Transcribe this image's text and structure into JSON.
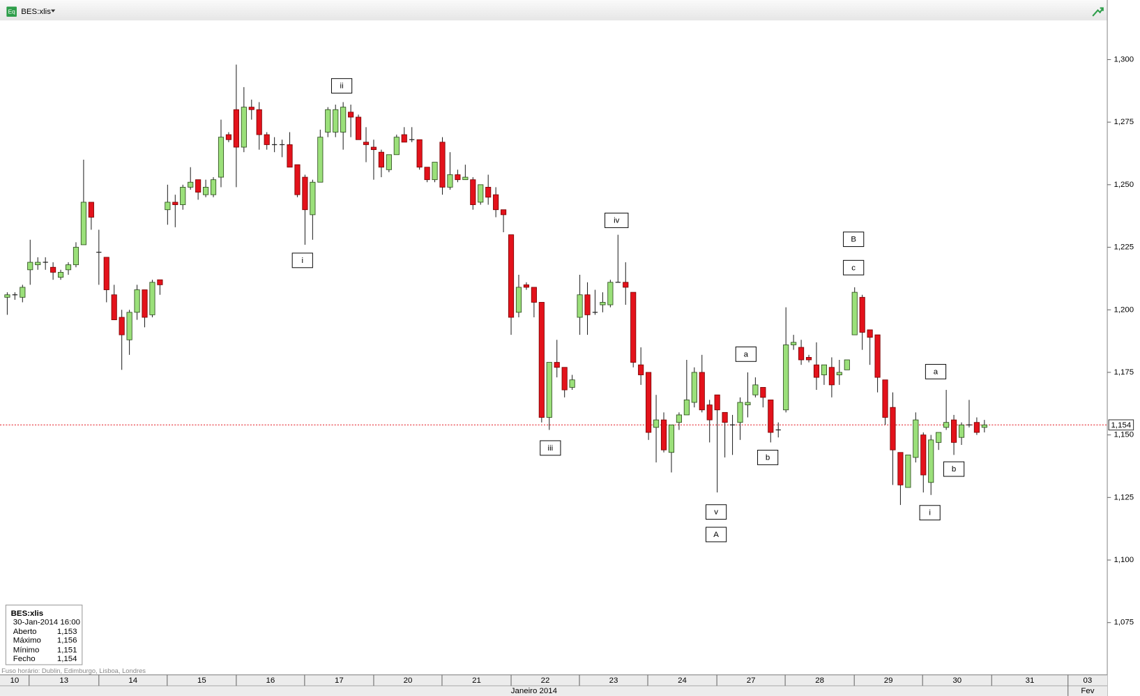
{
  "app_icon": "Eq",
  "instrument": "BES:xlis",
  "footer": "Fuso horário: Dublin, Edimburgo, Lisboa, Londres",
  "info_box": {
    "title": "BES:xlis",
    "datetime": "30-Jan-2014 16:00",
    "rows": [
      [
        "Aberto",
        "1,153"
      ],
      [
        "Máximo",
        "1,156"
      ],
      [
        "Mínimo",
        "1,151"
      ],
      [
        "Fecho",
        "1,154"
      ]
    ]
  },
  "chart_data": {
    "type": "candlestick",
    "up_color": "#9be07a",
    "down_color": "#e3121b",
    "open": [
      1.205,
      1.206,
      1.205,
      1.216,
      1.218,
      1.219,
      1.217,
      1.213,
      1.216,
      1.218,
      1.226,
      1.243,
      1.223,
      1.221,
      1.206,
      1.197,
      1.188,
      1.199,
      1.208,
      1.198,
      1.212,
      1.24,
      1.243,
      1.242,
      1.249,
      1.252,
      1.246,
      1.246,
      1.253,
      1.27,
      1.28,
      1.265,
      1.281,
      1.28,
      1.27,
      1.266,
      1.266,
      1.266,
      1.258,
      1.253,
      1.238,
      1.251,
      1.271,
      1.271,
      1.271,
      1.279,
      1.277,
      1.267,
      1.265,
      1.263,
      1.256,
      1.262,
      1.27,
      1.268,
      1.268,
      1.257,
      1.252,
      1.267,
      1.249,
      1.254,
      1.252,
      1.252,
      1.243,
      1.249,
      1.246,
      1.24,
      1.23,
      1.199,
      1.21,
      1.209,
      1.203,
      1.157,
      1.179,
      1.177,
      1.169,
      1.197,
      1.206,
      1.199,
      1.202,
      1.202,
      1.211,
      1.211,
      1.207,
      1.178,
      1.175,
      1.153,
      1.156,
      1.143,
      1.155,
      1.158,
      1.163,
      1.175,
      1.162,
      1.166,
      1.159,
      1.154,
      1.155,
      1.162,
      1.166,
      1.169,
      1.164,
      1.152,
      1.16,
      1.186,
      1.185,
      1.181,
      1.178,
      1.174,
      1.177,
      1.174,
      1.176,
      1.19,
      1.205,
      1.192,
      1.19,
      1.172,
      1.161,
      1.143,
      1.129,
      1.141,
      1.15,
      1.131,
      1.147,
      1.153,
      1.156,
      1.149,
      1.154,
      1.155,
      1.153
    ],
    "high": [
      1.207,
      1.207,
      1.21,
      1.228,
      1.221,
      1.221,
      1.219,
      1.216,
      1.219,
      1.227,
      1.26,
      1.243,
      1.232,
      1.221,
      1.21,
      1.2,
      1.2,
      1.21,
      1.208,
      1.212,
      1.212,
      1.25,
      1.246,
      1.25,
      1.257,
      1.252,
      1.252,
      1.253,
      1.276,
      1.271,
      1.298,
      1.289,
      1.284,
      1.283,
      1.271,
      1.269,
      1.268,
      1.271,
      1.258,
      1.254,
      1.252,
      1.272,
      1.281,
      1.282,
      1.283,
      1.282,
      1.278,
      1.273,
      1.268,
      1.264,
      1.262,
      1.27,
      1.273,
      1.273,
      1.268,
      1.257,
      1.259,
      1.269,
      1.263,
      1.256,
      1.258,
      1.253,
      1.25,
      1.254,
      1.249,
      1.24,
      1.23,
      1.214,
      1.211,
      1.209,
      1.203,
      1.179,
      1.188,
      1.177,
      1.174,
      1.214,
      1.211,
      1.208,
      1.207,
      1.212,
      1.23,
      1.219,
      1.207,
      1.185,
      1.175,
      1.166,
      1.159,
      1.154,
      1.159,
      1.18,
      1.177,
      1.182,
      1.164,
      1.166,
      1.159,
      1.158,
      1.165,
      1.175,
      1.173,
      1.169,
      1.164,
      1.155,
      1.201,
      1.19,
      1.188,
      1.182,
      1.187,
      1.178,
      1.181,
      1.18,
      1.18,
      1.209,
      1.206,
      1.192,
      1.19,
      1.172,
      1.167,
      1.143,
      1.142,
      1.159,
      1.151,
      1.15,
      1.151,
      1.168,
      1.158,
      1.155,
      1.164,
      1.157,
      1.156
    ],
    "low": [
      1.198,
      1.204,
      1.203,
      1.21,
      1.216,
      1.216,
      1.212,
      1.212,
      1.214,
      1.217,
      1.226,
      1.232,
      1.21,
      1.203,
      1.196,
      1.176,
      1.182,
      1.196,
      1.193,
      1.197,
      1.206,
      1.234,
      1.233,
      1.24,
      1.248,
      1.244,
      1.245,
      1.245,
      1.249,
      1.267,
      1.249,
      1.263,
      1.276,
      1.264,
      1.264,
      1.263,
      1.261,
      1.257,
      1.245,
      1.226,
      1.228,
      1.251,
      1.269,
      1.269,
      1.264,
      1.269,
      1.268,
      1.259,
      1.252,
      1.253,
      1.255,
      1.262,
      1.267,
      1.267,
      1.256,
      1.251,
      1.251,
      1.246,
      1.248,
      1.251,
      1.252,
      1.24,
      1.242,
      1.242,
      1.237,
      1.231,
      1.19,
      1.197,
      1.208,
      1.197,
      1.155,
      1.152,
      1.173,
      1.165,
      1.168,
      1.19,
      1.19,
      1.198,
      1.199,
      1.201,
      1.211,
      1.202,
      1.177,
      1.17,
      1.148,
      1.139,
      1.143,
      1.135,
      1.152,
      1.158,
      1.161,
      1.159,
      1.147,
      1.127,
      1.141,
      1.142,
      1.148,
      1.157,
      1.165,
      1.161,
      1.147,
      1.149,
      1.159,
      1.184,
      1.178,
      1.179,
      1.168,
      1.17,
      1.165,
      1.17,
      1.176,
      1.19,
      1.184,
      1.178,
      1.167,
      1.154,
      1.13,
      1.122,
      1.129,
      1.139,
      1.127,
      1.126,
      1.144,
      1.152,
      1.142,
      1.146,
      1.153,
      1.15,
      1.151
    ],
    "close": [
      1.206,
      1.206,
      1.209,
      1.219,
      1.219,
      1.219,
      1.215,
      1.215,
      1.218,
      1.225,
      1.243,
      1.237,
      1.223,
      1.208,
      1.196,
      1.19,
      1.199,
      1.208,
      1.197,
      1.211,
      1.21,
      1.243,
      1.242,
      1.249,
      1.251,
      1.247,
      1.249,
      1.252,
      1.269,
      1.268,
      1.265,
      1.281,
      1.28,
      1.27,
      1.266,
      1.266,
      1.266,
      1.257,
      1.246,
      1.24,
      1.251,
      1.269,
      1.28,
      1.28,
      1.281,
      1.277,
      1.268,
      1.266,
      1.264,
      1.257,
      1.262,
      1.269,
      1.267,
      1.268,
      1.257,
      1.252,
      1.259,
      1.249,
      1.254,
      1.252,
      1.253,
      1.242,
      1.25,
      1.245,
      1.24,
      1.238,
      1.197,
      1.209,
      1.209,
      1.203,
      1.157,
      1.179,
      1.177,
      1.168,
      1.172,
      1.206,
      1.198,
      1.199,
      1.203,
      1.211,
      1.211,
      1.209,
      1.179,
      1.174,
      1.151,
      1.156,
      1.144,
      1.154,
      1.158,
      1.164,
      1.175,
      1.16,
      1.156,
      1.16,
      1.155,
      1.154,
      1.163,
      1.163,
      1.17,
      1.165,
      1.151,
      1.152,
      1.186,
      1.187,
      1.18,
      1.18,
      1.173,
      1.178,
      1.17,
      1.175,
      1.18,
      1.207,
      1.191,
      1.189,
      1.173,
      1.157,
      1.144,
      1.13,
      1.142,
      1.156,
      1.134,
      1.148,
      1.151,
      1.155,
      1.147,
      1.154,
      1.154,
      1.151,
      1.154
    ],
    "xlim": [
      -0.952,
      144.095
    ],
    "xticks": [
      {
        "value": -0.952,
        "label": "10"
      },
      {
        "value": 2.86,
        "label": "13"
      },
      {
        "value": 12,
        "label": "14"
      },
      {
        "value": 20.95,
        "label": "15"
      },
      {
        "value": 30,
        "label": "16"
      },
      {
        "value": 38.95,
        "label": "17"
      },
      {
        "value": 48,
        "label": "20"
      },
      {
        "value": 56.95,
        "label": "21"
      },
      {
        "value": 66,
        "label": "22"
      },
      {
        "value": 74.95,
        "label": "23"
      },
      {
        "value": 83.9,
        "label": "24"
      },
      {
        "value": 92.95,
        "label": "27"
      },
      {
        "value": 101.9,
        "label": "28"
      },
      {
        "value": 110.95,
        "label": "29"
      },
      {
        "value": 119.9,
        "label": "30"
      },
      {
        "value": 128.95,
        "label": "31"
      },
      {
        "value": 138.95,
        "label": "03"
      }
    ],
    "x2ticks": [
      {
        "value": -0.952,
        "label": "Janeiro 2014"
      },
      {
        "value": 138.95,
        "label": "Fev"
      }
    ],
    "ylim": [
      1.0541,
      1.3238
    ],
    "yticks": [
      {
        "value": 1.075,
        "label": "1,075"
      },
      {
        "value": 1.1,
        "label": "1,100"
      },
      {
        "value": 1.125,
        "label": "1,125"
      },
      {
        "value": 1.15,
        "label": "1,150"
      },
      {
        "value": 1.175,
        "label": "1,175"
      },
      {
        "value": 1.2,
        "label": "1,200"
      },
      {
        "value": 1.225,
        "label": "1,225"
      },
      {
        "value": 1.25,
        "label": "1,250"
      },
      {
        "value": 1.275,
        "label": "1,275"
      },
      {
        "value": 1.3,
        "label": "1,300"
      }
    ],
    "last_price": {
      "value": 1.154,
      "label": "1,154",
      "color": "#e3121b"
    },
    "annotations": [
      "i",
      "ii",
      "iii",
      "iv",
      "v",
      "A",
      "a",
      "b",
      "B",
      "c",
      "a",
      "b",
      "i"
    ]
  }
}
